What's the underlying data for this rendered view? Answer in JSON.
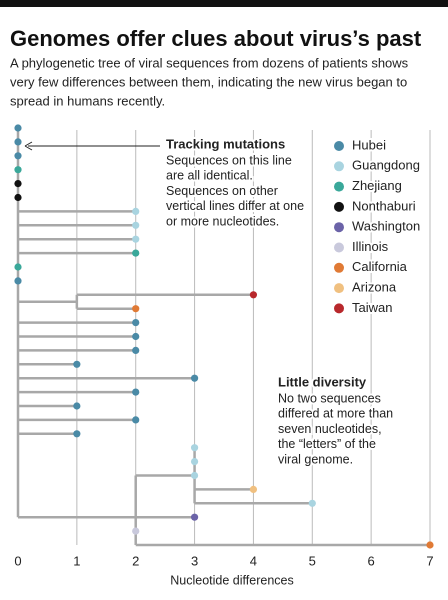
{
  "chart_data": {
    "type": "tree",
    "title": "Genomes offer clues about virus’s past",
    "subtitle": [
      "A phylogenetic tree of viral sequences from dozens of patients shows",
      "very few differences between them, indicating the new virus began to",
      "spread in humans recently."
    ],
    "xlabel": "Nucleotide differences",
    "xlim": [
      0,
      7
    ],
    "xticks": [
      0,
      1,
      2,
      3,
      4,
      5,
      6,
      7
    ],
    "grid": true,
    "series": [
      {
        "name": "Hubei",
        "color": "#4a8aa6"
      },
      {
        "name": "Guangdong",
        "color": "#a9d4e0"
      },
      {
        "name": "Zhejiang",
        "color": "#3aa89a"
      },
      {
        "name": "Nonthaburi",
        "color": "#111111"
      },
      {
        "name": "Washington",
        "color": "#6b63a8"
      },
      {
        "name": "Illinois",
        "color": "#c9c9dc"
      },
      {
        "name": "California",
        "color": "#e07a35"
      },
      {
        "name": "Arizona",
        "color": "#f0c080"
      },
      {
        "name": "Taiwan",
        "color": "#b8282c"
      }
    ],
    "nodes": [
      {
        "x": 0
      },
      {
        "x": 1,
        "parent": 0
      },
      {
        "x": 2,
        "parent": 0
      },
      {
        "x": 3,
        "parent": 2
      }
    ],
    "leaves": [
      {
        "x": 0,
        "parent": 0,
        "series": 0
      },
      {
        "x": 0,
        "parent": 0,
        "series": 0
      },
      {
        "x": 0,
        "parent": 0,
        "series": 0
      },
      {
        "x": 0,
        "parent": 0,
        "series": 2
      },
      {
        "x": 0,
        "parent": 0,
        "series": 3
      },
      {
        "x": 0,
        "parent": 0,
        "series": 3
      },
      {
        "x": 2,
        "parent": 0,
        "series": 1
      },
      {
        "x": 2,
        "parent": 0,
        "series": 1
      },
      {
        "x": 2,
        "parent": 0,
        "series": 1
      },
      {
        "x": 2,
        "parent": 0,
        "series": 2
      },
      {
        "x": 0,
        "parent": 0,
        "series": 2
      },
      {
        "x": 0,
        "parent": 0,
        "series": 0
      },
      {
        "x": 4,
        "parent": 1,
        "series": 8
      },
      {
        "x": 2,
        "parent": 1,
        "series": 6
      },
      {
        "x": 2,
        "parent": 0,
        "series": 0
      },
      {
        "x": 2,
        "parent": 0,
        "series": 0
      },
      {
        "x": 2,
        "parent": 0,
        "series": 0
      },
      {
        "x": 1,
        "parent": 0,
        "series": 0
      },
      {
        "x": 3,
        "parent": 0,
        "series": 0
      },
      {
        "x": 2,
        "parent": 0,
        "series": 0
      },
      {
        "x": 1,
        "parent": 0,
        "series": 0
      },
      {
        "x": 2,
        "parent": 0,
        "series": 0
      },
      {
        "x": 1,
        "parent": 0,
        "series": 0
      },
      {
        "x": 3,
        "parent": 3,
        "series": 1
      },
      {
        "x": 3,
        "parent": 3,
        "series": 1
      },
      {
        "x": 3,
        "parent": 3,
        "series": 1
      },
      {
        "x": 4,
        "parent": 3,
        "series": 7
      },
      {
        "x": 5,
        "parent": 3,
        "series": 1
      },
      {
        "x": 3,
        "parent": 2,
        "series": 4
      },
      {
        "x": 2,
        "parent": 2,
        "series": 5
      },
      {
        "x": 7,
        "parent": 2,
        "series": 6
      }
    ],
    "annotations": [
      {
        "title": "Tracking mutations",
        "lines": [
          "Sequences on this line",
          "are all identical.",
          "Sequences on other",
          "vertical lines differ at one",
          "or more nucleotides."
        ]
      },
      {
        "title": "Little diversity",
        "lines": [
          "No two sequences",
          "differed at more than",
          "seven nucleotides,",
          "the “letters” of the",
          "viral genome."
        ]
      }
    ]
  }
}
